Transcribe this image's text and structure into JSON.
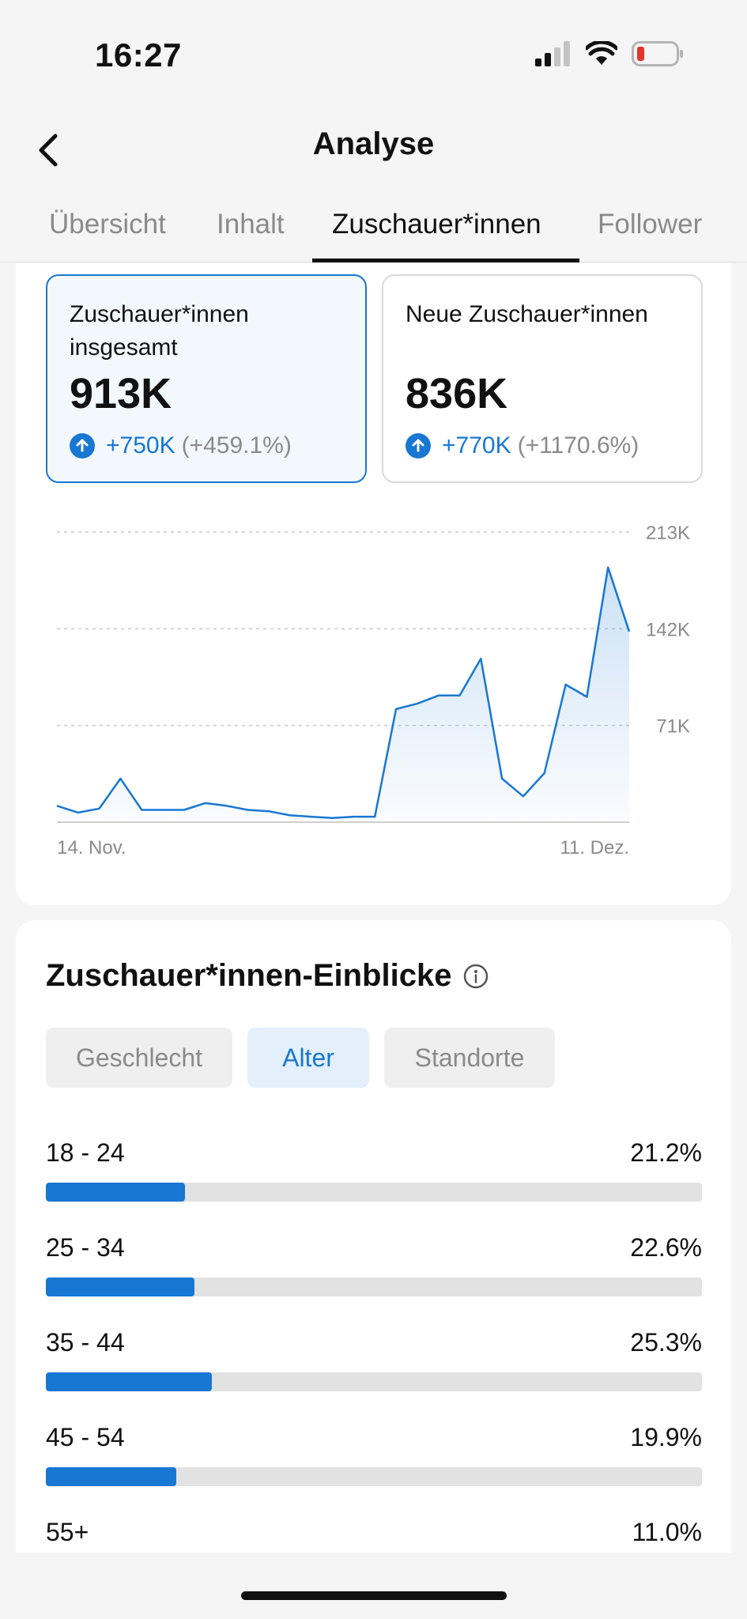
{
  "status": {
    "time": "16:27"
  },
  "header": {
    "title": "Analyse"
  },
  "tabs": [
    {
      "label": "Übersicht"
    },
    {
      "label": "Inhalt"
    },
    {
      "label": "Zuschauer*innen"
    },
    {
      "label": "Follower"
    }
  ],
  "active_tab": 2,
  "metrics": [
    {
      "label": "Zuschauer*innen insgesamt",
      "value": "913K",
      "change": "+750K",
      "change_pct": "(+459.1%)",
      "selected": true
    },
    {
      "label": "Neue Zuschauer*innen",
      "value": "836K",
      "change": "+770K",
      "change_pct": "(+1170.6%)",
      "selected": false
    }
  ],
  "colors": {
    "accent": "#1877d3",
    "track": "#e2e2e2",
    "muted": "#8a8a8a"
  },
  "chart_data": {
    "type": "area",
    "title": "",
    "x_start_label": "14. Nov.",
    "x_end_label": "11. Dez.",
    "ylim": [
      0,
      213
    ],
    "y_unit": "K",
    "y_ticks": [
      {
        "value": 213,
        "label": "213K"
      },
      {
        "value": 142,
        "label": "142K"
      },
      {
        "value": 71,
        "label": "71K"
      }
    ],
    "values": [
      12,
      7,
      10,
      32,
      9,
      9,
      9,
      14,
      12,
      9,
      8,
      5,
      4,
      3,
      4,
      4,
      83,
      87,
      93,
      93,
      120,
      32,
      19,
      36,
      101,
      92,
      187,
      140
    ]
  },
  "insights": {
    "title": "Zuschauer*innen-Einblicke",
    "filters": [
      {
        "label": "Geschlecht"
      },
      {
        "label": "Alter"
      },
      {
        "label": "Standorte"
      }
    ],
    "active_filter": 1,
    "age_groups": [
      {
        "label": "18 - 24",
        "pct_label": "21.2%",
        "pct": 21.2
      },
      {
        "label": "25 - 34",
        "pct_label": "22.6%",
        "pct": 22.6
      },
      {
        "label": "35 - 44",
        "pct_label": "25.3%",
        "pct": 25.3
      },
      {
        "label": "45 - 54",
        "pct_label": "19.9%",
        "pct": 19.9
      },
      {
        "label": "55+",
        "pct_label": "11.0%",
        "pct": 11.0
      }
    ]
  }
}
